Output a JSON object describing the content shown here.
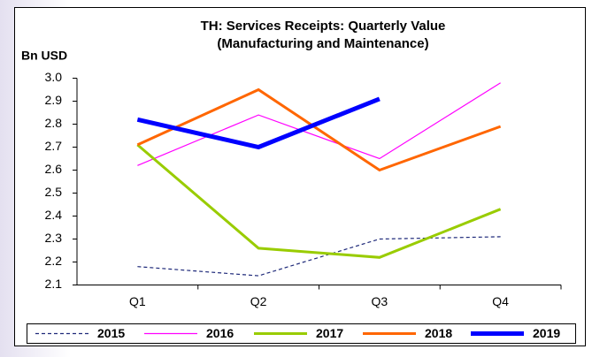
{
  "chart_data": {
    "type": "line",
    "title": [
      "TH: Services Receipts: Quarterly Value",
      "(Manufacturing and Maintenance)"
    ],
    "y_label": "Bn USD",
    "categories": [
      "Q1",
      "Q2",
      "Q3",
      "Q4"
    ],
    "ylim": [
      2.1,
      3.0
    ],
    "yticks": [
      {
        "value": 2.1,
        "label": "2.1"
      },
      {
        "value": 2.2,
        "label": "2.2"
      },
      {
        "value": 2.3,
        "label": "2.3"
      },
      {
        "value": 2.4,
        "label": "2.4"
      },
      {
        "value": 2.5,
        "label": "2.5"
      },
      {
        "value": 2.6,
        "label": "2.6"
      },
      {
        "value": 2.7,
        "label": "2.7"
      },
      {
        "value": 2.8,
        "label": "2.8"
      },
      {
        "value": 2.9,
        "label": "2.9"
      },
      {
        "value": 3.0,
        "label": "3.0"
      }
    ],
    "grid": false,
    "legend": "bottom",
    "series": [
      {
        "name": "2015",
        "color": "#1f2a7a",
        "dashed": true,
        "values": [
          2.18,
          2.14,
          2.3,
          2.31
        ]
      },
      {
        "name": "2016",
        "color": "#ff00ff",
        "values": [
          2.62,
          2.84,
          2.65,
          2.98
        ]
      },
      {
        "name": "2017",
        "color": "#99cc00",
        "values": [
          2.71,
          2.26,
          2.22,
          2.43
        ]
      },
      {
        "name": "2018",
        "color": "#ff6600",
        "values": [
          2.71,
          2.95,
          2.6,
          2.79
        ]
      },
      {
        "name": "2019",
        "color": "#0000ff",
        "values": [
          2.82,
          2.7,
          2.91,
          null
        ]
      }
    ]
  }
}
